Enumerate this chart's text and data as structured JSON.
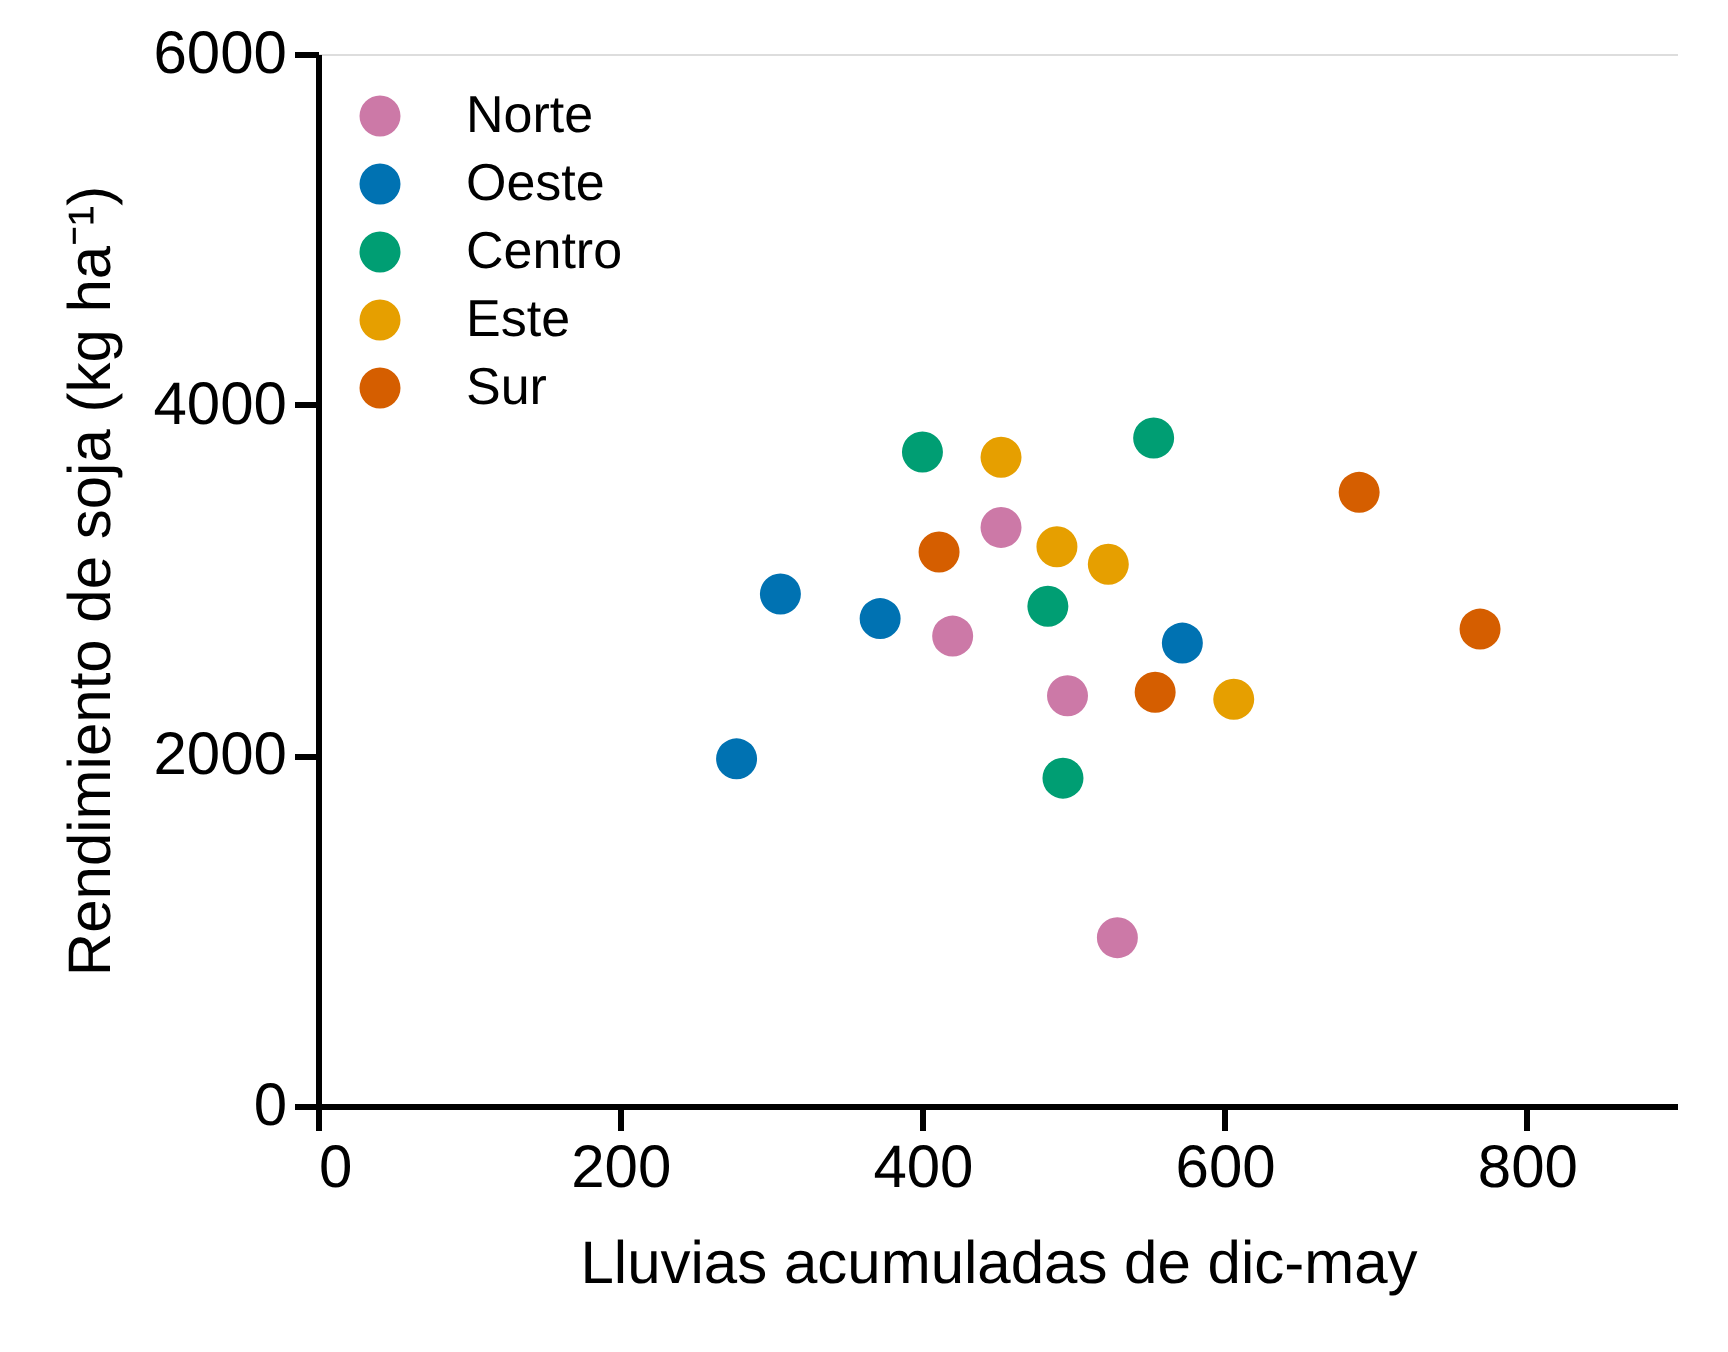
{
  "chart_data": {
    "type": "scatter",
    "xlabel": "Lluvias acumuladas de dic-may",
    "ylabel": "Rendimiento de soja (kg ha⁻¹)",
    "xlim": [
      0,
      900
    ],
    "xticks": [
      0,
      200,
      400,
      600,
      800
    ],
    "ylim": [
      0,
      6000
    ],
    "yticks": [
      0,
      2000,
      4000,
      6000
    ],
    "grid": false,
    "legend": "top left",
    "marker": "circle",
    "series": [
      {
        "name": "Norte",
        "color": "#cc79a7",
        "x": [
          452,
          420,
          496,
          529
        ],
        "values": [
          3300,
          2680,
          2340,
          960
        ]
      },
      {
        "name": "Oeste",
        "color": "#0072b2",
        "x": [
          306,
          372,
          277,
          572
        ],
        "values": [
          2920,
          2780,
          1980,
          2640
        ]
      },
      {
        "name": "Centro",
        "color": "#009e73",
        "x": [
          400,
          553,
          483,
          493
        ],
        "values": [
          3730,
          3810,
          2850,
          1870
        ]
      },
      {
        "name": "Este",
        "color": "#e69f00",
        "x": [
          452,
          489,
          523,
          606
        ],
        "values": [
          3700,
          3190,
          3090,
          2320
        ]
      },
      {
        "name": "Sur",
        "color": "#d55e00",
        "x": [
          411,
          689,
          769,
          554
        ],
        "values": [
          3160,
          3500,
          2720,
          2360
        ]
      }
    ]
  }
}
